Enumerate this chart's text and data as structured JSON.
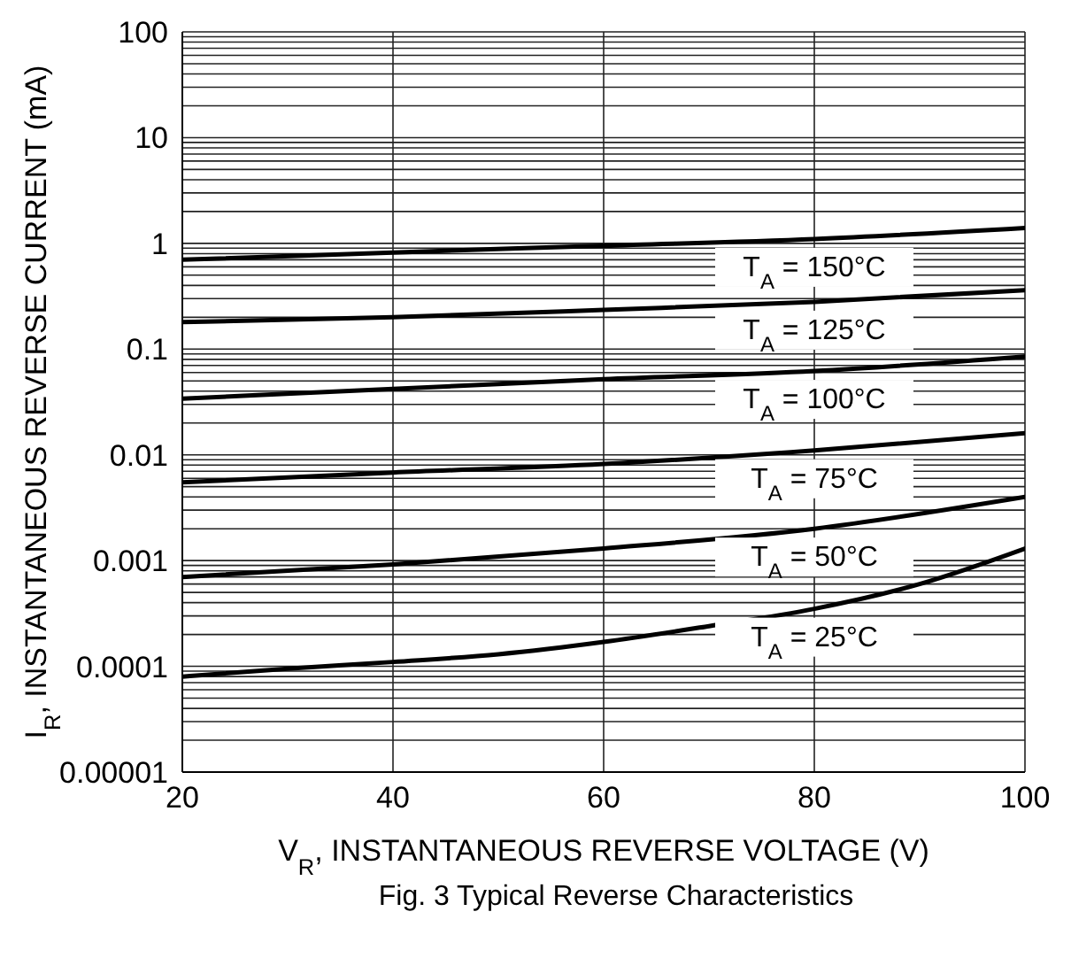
{
  "chart_data": {
    "type": "line",
    "xlabel": "V$_{R}$, INSTANTANEOUS REVERSE VOLTAGE (V)",
    "ylabel": "I$_{R}$, INSTANTANEOUS REVERSE CURRENT (mA)",
    "annotations": [
      "Fig. 3 Typical Reverse Characteristics"
    ],
    "log": "y",
    "grid": true,
    "marker": "none",
    "line_style": "solid",
    "xlim": [
      20,
      100
    ],
    "xticks": [
      20,
      40,
      60,
      80,
      100
    ],
    "ylim": [
      1e-05,
      100
    ],
    "yticks": [
      {
        "value": 1e-05,
        "label": "0.00001"
      },
      {
        "value": 2e-05,
        "label": null
      },
      {
        "value": 3e-05,
        "label": null
      },
      {
        "value": 4e-05,
        "label": null
      },
      {
        "value": 5e-05,
        "label": null
      },
      {
        "value": 6e-05,
        "label": null
      },
      {
        "value": 7e-05,
        "label": null
      },
      {
        "value": 8e-05,
        "label": null
      },
      {
        "value": 9e-05,
        "label": null
      },
      0.0001,
      {
        "value": 0.0002,
        "label": null
      },
      {
        "value": 0.0003,
        "label": null
      },
      {
        "value": 0.0004,
        "label": null
      },
      {
        "value": 0.0005,
        "label": null
      },
      {
        "value": 0.0006,
        "label": null
      },
      {
        "value": 0.0007,
        "label": null
      },
      {
        "value": 0.0008,
        "label": null
      },
      {
        "value": 0.0009,
        "label": null
      },
      0.001,
      {
        "value": 0.002,
        "label": null
      },
      {
        "value": 0.003,
        "label": null
      },
      {
        "value": 0.004,
        "label": null
      },
      {
        "value": 0.005,
        "label": null
      },
      {
        "value": 0.006,
        "label": null
      },
      {
        "value": 0.007,
        "label": null
      },
      {
        "value": 0.008,
        "label": null
      },
      {
        "value": 0.009,
        "label": null
      },
      0.01,
      {
        "value": 0.02,
        "label": null
      },
      {
        "value": 0.03,
        "label": null
      },
      {
        "value": 0.04,
        "label": null
      },
      {
        "value": 0.05,
        "label": null
      },
      {
        "value": 0.06,
        "label": null
      },
      {
        "value": 0.07,
        "label": null
      },
      {
        "value": 0.08,
        "label": null
      },
      {
        "value": 0.09,
        "label": null
      },
      0.1,
      {
        "value": 0.2,
        "label": null
      },
      {
        "value": 0.3,
        "label": null
      },
      {
        "value": 0.4,
        "label": null
      },
      {
        "value": 0.5,
        "label": null
      },
      {
        "value": 0.6,
        "label": null
      },
      {
        "value": 0.7,
        "label": null
      },
      {
        "value": 0.8,
        "label": null
      },
      {
        "value": 0.9,
        "label": null
      },
      1,
      {
        "value": 2,
        "label": null
      },
      {
        "value": 3,
        "label": null
      },
      {
        "value": 4,
        "label": null
      },
      {
        "value": 5,
        "label": null
      },
      {
        "value": 6,
        "label": null
      },
      {
        "value": 7,
        "label": null
      },
      {
        "value": 8,
        "label": null
      },
      {
        "value": 9,
        "label": null
      },
      10,
      {
        "value": 20,
        "label": null
      },
      {
        "value": 30,
        "label": null
      },
      {
        "value": 40,
        "label": null
      },
      {
        "value": 50,
        "label": null
      },
      {
        "value": 60,
        "label": null
      },
      {
        "value": 70,
        "label": null
      },
      {
        "value": 80,
        "label": null
      },
      {
        "value": 90,
        "label": null
      },
      100
    ],
    "series": [
      {
        "name": "T$_{A}$ = 150°C",
        "color": "#000000",
        "x": [
          20,
          40,
          60,
          80,
          100
        ],
        "values": [
          0.7,
          0.82,
          0.95,
          1.1,
          1.4
        ]
      },
      {
        "name": "T$_{A}$ = 125°C",
        "color": "#000000",
        "x": [
          20,
          40,
          60,
          80,
          100
        ],
        "values": [
          0.18,
          0.2,
          0.235,
          0.28,
          0.36
        ]
      },
      {
        "name": "T$_{A}$ = 100°C",
        "color": "#000000",
        "x": [
          20,
          40,
          60,
          80,
          100
        ],
        "values": [
          0.034,
          0.042,
          0.052,
          0.062,
          0.085
        ]
      },
      {
        "name": "T$_{A}$ = 75°C",
        "color": "#000000",
        "x": [
          20,
          40,
          60,
          80,
          100
        ],
        "values": [
          0.0055,
          0.0068,
          0.0082,
          0.011,
          0.016
        ]
      },
      {
        "name": "T$_{A}$ = 50°C",
        "color": "#000000",
        "x": [
          20,
          40,
          60,
          80,
          100
        ],
        "values": [
          0.0007,
          0.00092,
          0.0013,
          0.002,
          0.004
        ]
      },
      {
        "name": "T$_{A}$ = 25°C",
        "color": "#000000",
        "x": [
          20,
          30,
          40,
          50,
          60,
          70,
          80,
          90,
          100
        ],
        "values": [
          8e-05,
          9.5e-05,
          0.00011,
          0.00013,
          0.00017,
          0.00024,
          0.00035,
          0.0006,
          0.0013
        ]
      }
    ]
  }
}
